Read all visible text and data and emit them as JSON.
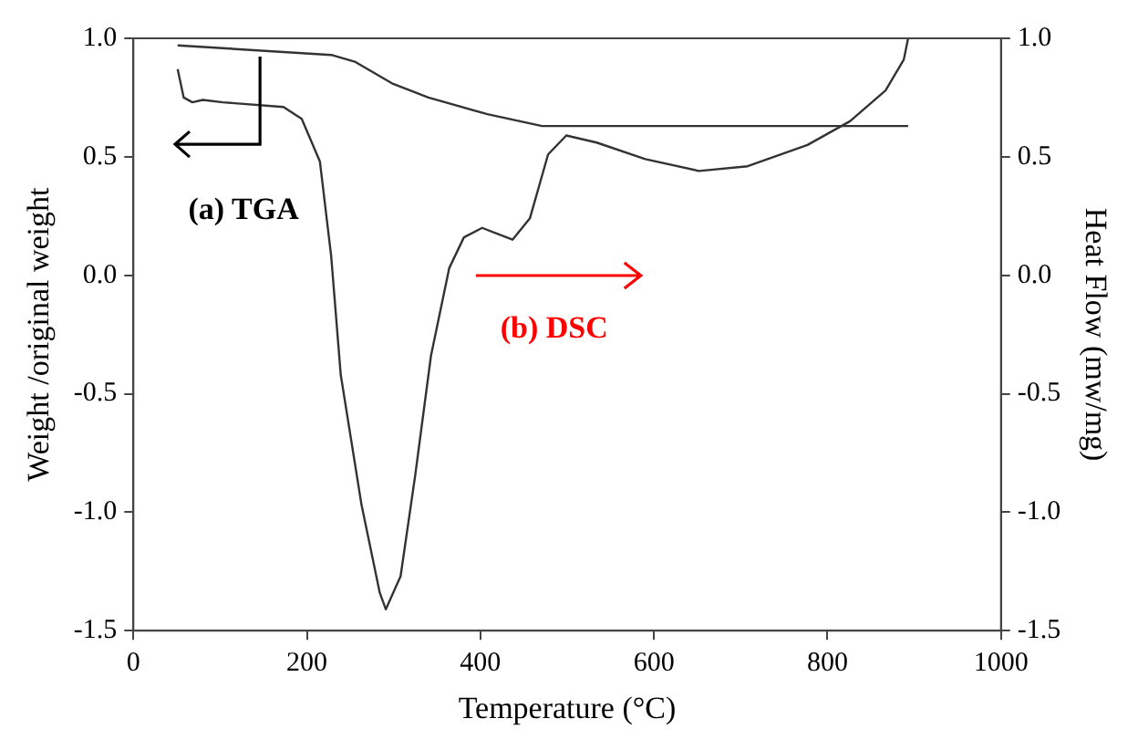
{
  "chart_data": {
    "type": "line",
    "xlabel": "Temperature (°C)",
    "ylabel": "Weight /original weight",
    "y2label": "Heat Flow (mw/mg)",
    "xlim": [
      0,
      1000
    ],
    "xticks": [
      0,
      200,
      400,
      600,
      800,
      1000
    ],
    "ylim": [
      -1.5,
      1.0
    ],
    "yticks": [
      -1.5,
      {
        "value": -1.0,
        "label": "-1.0"
      },
      -0.5,
      {
        "value": 0.0,
        "label": "0.0"
      },
      0.5,
      {
        "value": 1.0,
        "label": "1.0"
      }
    ],
    "y2lim": [
      -1.5,
      1.0
    ],
    "y2ticks": [
      -1.5,
      {
        "value": -1.0,
        "label": "-1.0"
      },
      -0.5,
      {
        "value": 0.0,
        "label": "0.0"
      },
      0.5,
      {
        "value": 1.0,
        "label": "1.0"
      }
    ],
    "grid": false,
    "legend": false,
    "marker": "none",
    "line_style": "solid",
    "series": [
      {
        "color": "#333333",
        "x": [
          51,
          228,
          256,
          298,
          340,
          408,
          471,
          550,
          700,
          893
        ],
        "values": [
          0.97,
          0.93,
          0.9,
          0.81,
          0.75,
          0.68,
          0.63,
          0.63,
          0.63,
          0.63
        ]
      },
      {
        "color": "#333333",
        "x": [
          51,
          58,
          68,
          80,
          103,
          173,
          194,
          215,
          228,
          239,
          263,
          284,
          291,
          308,
          325,
          343,
          364,
          381,
          402,
          437,
          457,
          478,
          499,
          534,
          590,
          652,
          708,
          777,
          826,
          867,
          888,
          893
        ],
        "values": [
          0.87,
          0.75,
          0.73,
          0.74,
          0.73,
          0.71,
          0.66,
          0.48,
          0.08,
          -0.42,
          -0.97,
          -1.34,
          -1.41,
          -1.27,
          -0.84,
          -0.34,
          0.03,
          0.16,
          0.2,
          0.15,
          0.24,
          0.51,
          0.59,
          0.56,
          0.49,
          0.44,
          0.46,
          0.55,
          0.65,
          0.78,
          0.91,
          1.0
        ]
      }
    ],
    "annotations": [
      "(a) TGA",
      "(b) DSC"
    ]
  }
}
